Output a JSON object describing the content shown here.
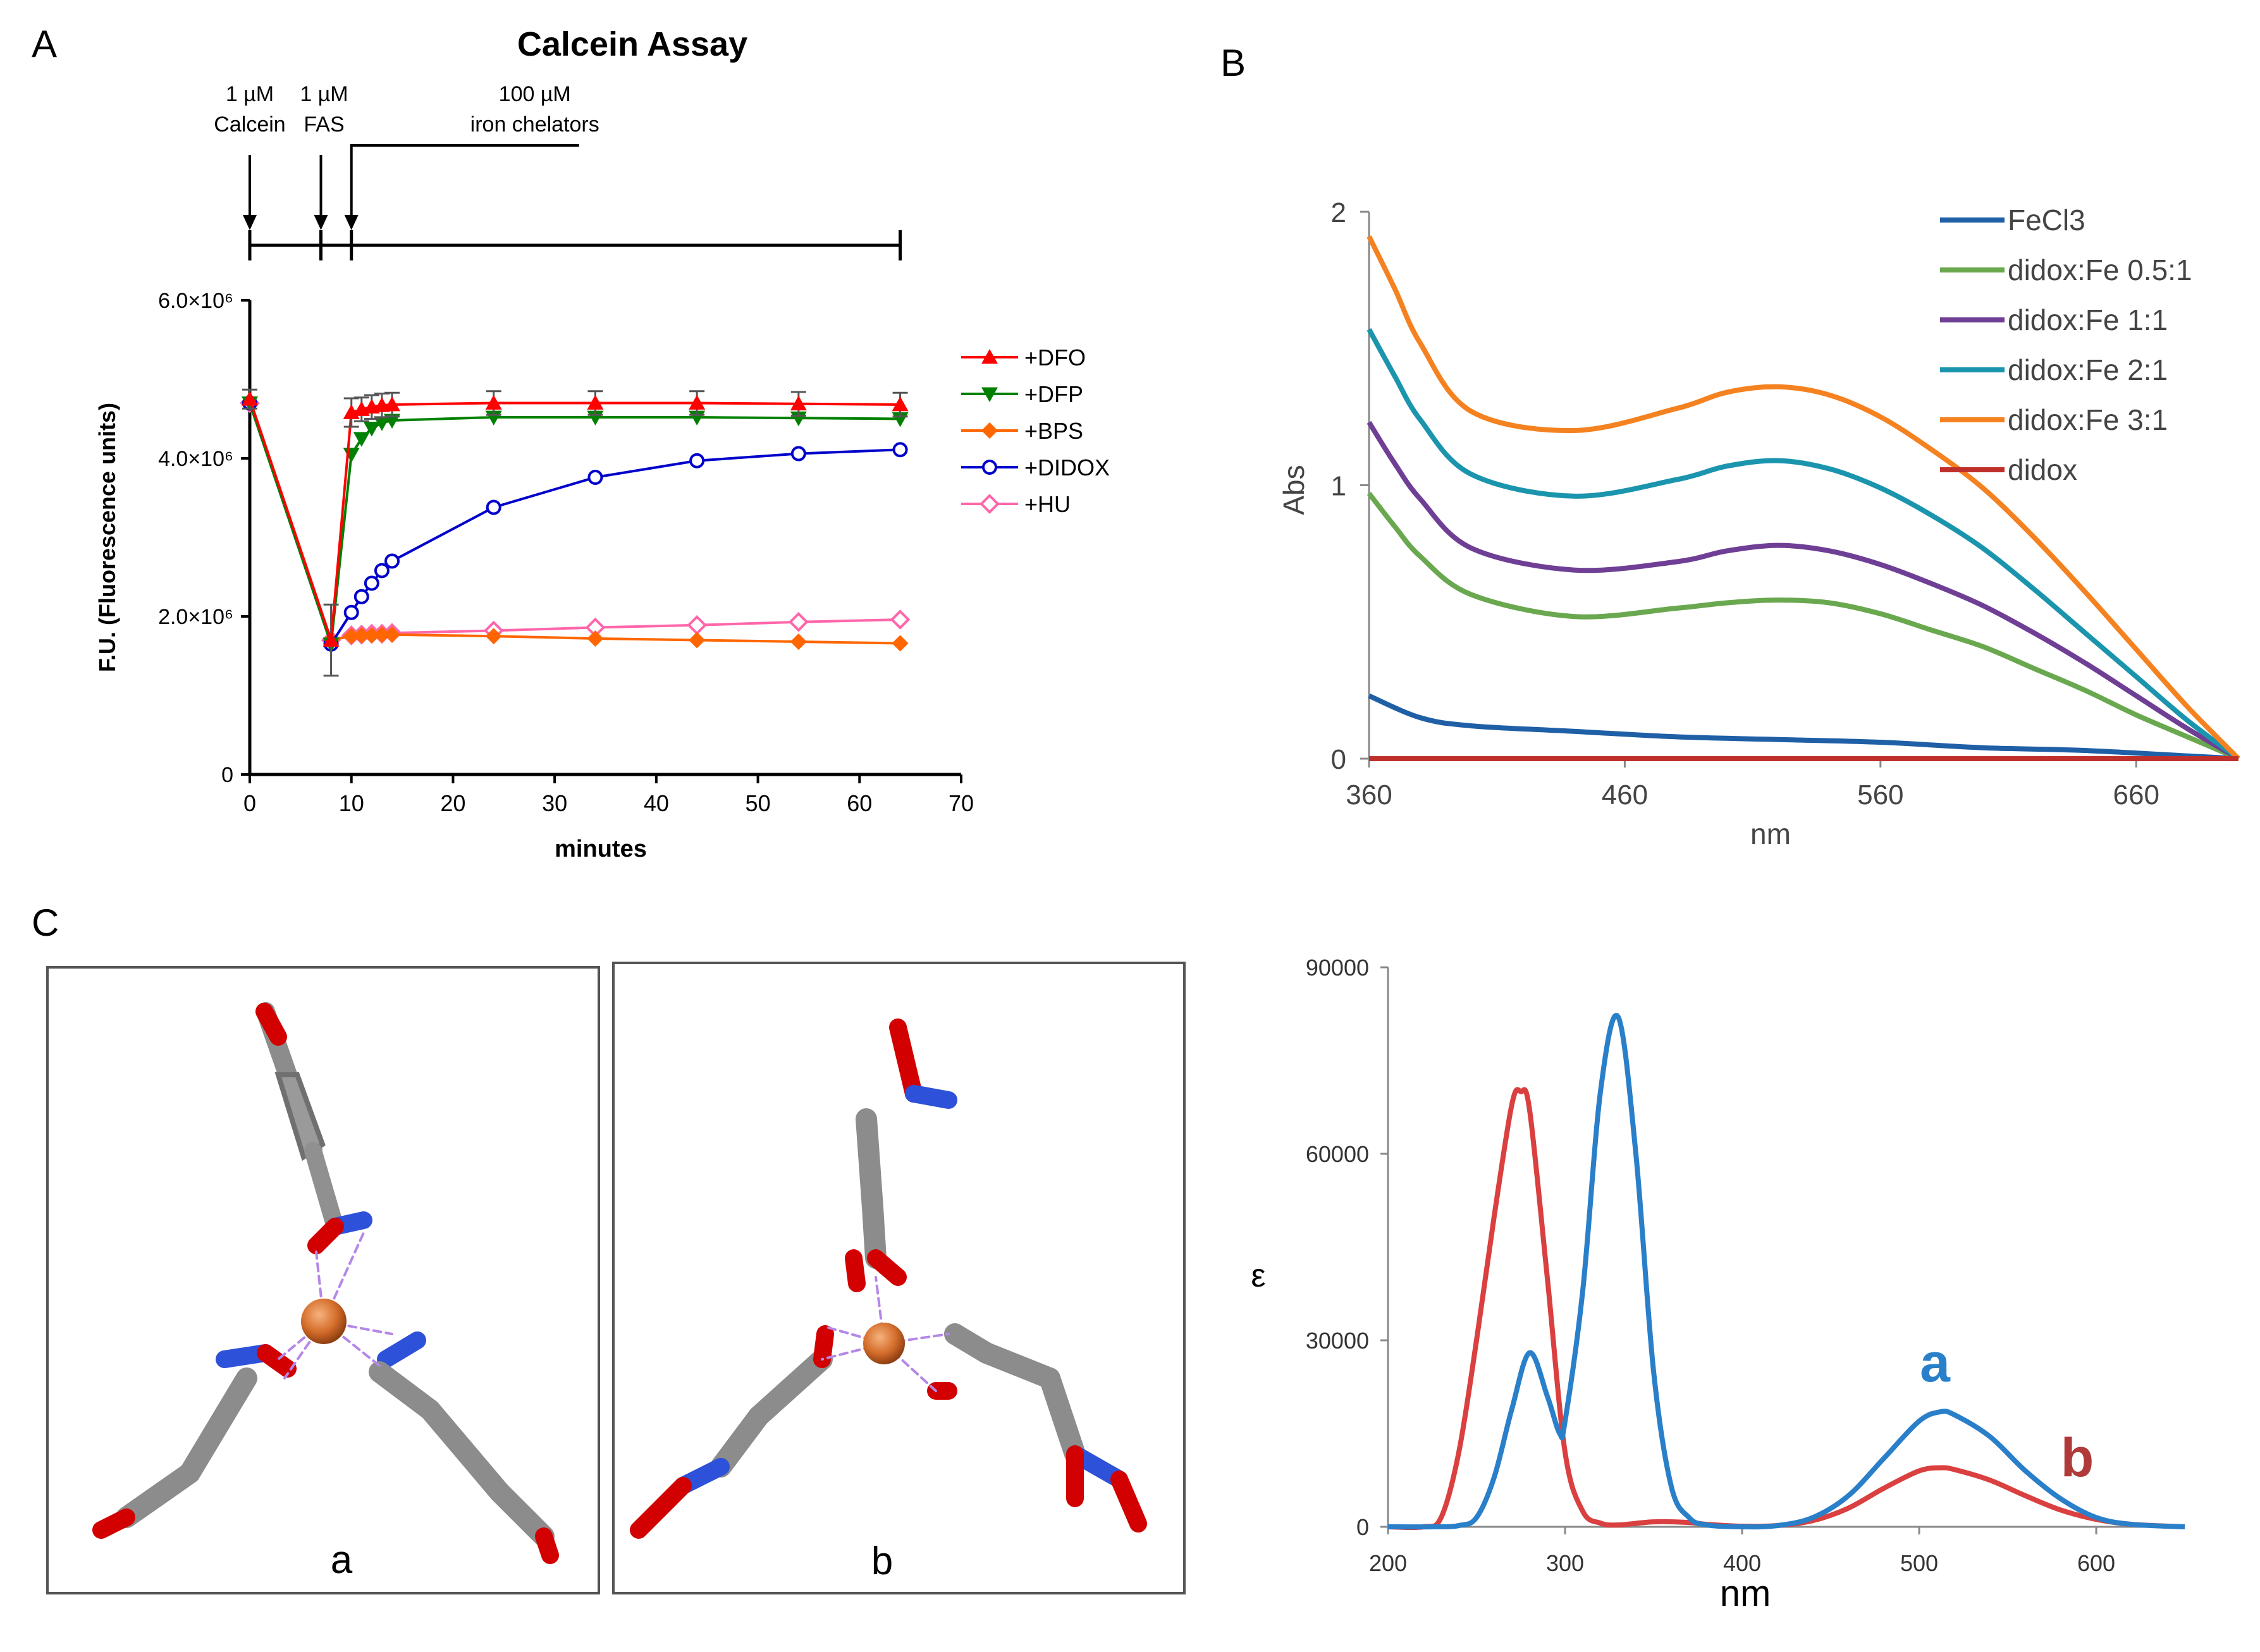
{
  "panel_labels": {
    "a": "A",
    "b": "B",
    "c": "C"
  },
  "chart_data": [
    {
      "id": "calcein",
      "type": "line",
      "title": "Calcein Assay",
      "xlabel": "minutes",
      "ylabel": "F.U. (Fluorescence units)",
      "xlim": [
        0,
        70
      ],
      "ylim": [
        0,
        6000000
      ],
      "xticks": [
        0,
        10,
        20,
        30,
        40,
        50,
        60,
        70
      ],
      "ytick_labels": [
        {
          "value": 0,
          "label": "0"
        },
        {
          "value": 2000000,
          "label": "2.0×10⁶"
        },
        {
          "value": 4000000,
          "label": "4.0×10⁶"
        },
        {
          "value": 6000000,
          "label": "6.0×10⁶"
        }
      ],
      "timeline": {
        "events": [
          {
            "time": 0,
            "amount": "1 µM",
            "label": "Calcein"
          },
          {
            "time": 7,
            "amount": "1 µM",
            "label": "FAS"
          },
          {
            "time": 10,
            "amount": "100 µM",
            "label": "iron chelators"
          }
        ],
        "end": 64
      },
      "series": [
        {
          "name": "+DFO",
          "color": "#ff0000",
          "marker": "triangle-up",
          "x": [
            0,
            8,
            10,
            11,
            12,
            13,
            14,
            24,
            34,
            44,
            54,
            64
          ],
          "y": [
            4750000,
            1700000,
            4580000,
            4620000,
            4650000,
            4670000,
            4680000,
            4700000,
            4700000,
            4700000,
            4690000,
            4680000
          ],
          "err": [
            120000,
            450000,
            180000,
            150000,
            150000,
            150000,
            150000,
            150000,
            150000,
            150000,
            150000,
            150000
          ]
        },
        {
          "name": "+DFP",
          "color": "#008000",
          "marker": "triangle-down",
          "x": [
            0,
            8,
            10,
            11,
            12,
            13,
            14,
            24,
            34,
            44,
            54,
            64
          ],
          "y": [
            4700000,
            1650000,
            4050000,
            4250000,
            4380000,
            4450000,
            4480000,
            4520000,
            4520000,
            4520000,
            4510000,
            4500000
          ],
          "err": [
            0,
            0,
            0,
            0,
            0,
            0,
            0,
            0,
            0,
            0,
            0,
            0
          ]
        },
        {
          "name": "+BPS",
          "color": "#ff6600",
          "marker": "diamond",
          "x": [
            0,
            8,
            10,
            11,
            12,
            13,
            14,
            24,
            34,
            44,
            54,
            64
          ],
          "y": [
            4700000,
            1700000,
            1750000,
            1760000,
            1760000,
            1770000,
            1770000,
            1750000,
            1720000,
            1700000,
            1680000,
            1660000
          ],
          "err": [
            0,
            0,
            0,
            0,
            0,
            0,
            0,
            0,
            0,
            0,
            0,
            0
          ]
        },
        {
          "name": "+DIDOX",
          "color": "#0000cc",
          "marker": "circle",
          "x": [
            0,
            8,
            10,
            11,
            12,
            13,
            14,
            24,
            34,
            44,
            54,
            64
          ],
          "y": [
            4700000,
            1650000,
            2050000,
            2250000,
            2420000,
            2580000,
            2700000,
            3380000,
            3760000,
            3970000,
            4060000,
            4110000
          ],
          "err": [
            0,
            0,
            0,
            0,
            0,
            0,
            0,
            0,
            0,
            0,
            0,
            0
          ]
        },
        {
          "name": "+HU",
          "color": "#ff66aa",
          "marker": "diamond-open",
          "x": [
            0,
            8,
            10,
            11,
            12,
            13,
            14,
            24,
            34,
            44,
            54,
            64
          ],
          "y": [
            4700000,
            1700000,
            1760000,
            1770000,
            1780000,
            1780000,
            1790000,
            1820000,
            1860000,
            1890000,
            1930000,
            1960000
          ],
          "err": [
            0,
            0,
            0,
            0,
            0,
            0,
            0,
            0,
            0,
            0,
            0,
            0
          ]
        }
      ]
    },
    {
      "id": "abs-spectra",
      "type": "line",
      "title": "",
      "xlabel": "nm",
      "ylabel": "Abs",
      "xlim": [
        360,
        700
      ],
      "ylim": [
        0,
        2
      ],
      "xticks": [
        360,
        460,
        560,
        660
      ],
      "yticks": [
        0,
        1,
        2
      ],
      "series": [
        {
          "name": "FeCl3",
          "color": "#1f5fa6",
          "x": [
            360,
            380,
            400,
            440,
            480,
            520,
            560,
            600,
            640,
            680,
            700
          ],
          "y": [
            0.23,
            0.15,
            0.12,
            0.1,
            0.08,
            0.07,
            0.06,
            0.04,
            0.03,
            0.01,
            0.0
          ]
        },
        {
          "name": "didox:Fe 0.5:1",
          "color": "#6aa84f",
          "x": [
            360,
            370,
            380,
            400,
            440,
            480,
            500,
            520,
            540,
            560,
            580,
            600,
            620,
            640,
            660,
            680,
            700
          ],
          "y": [
            0.97,
            0.85,
            0.74,
            0.6,
            0.52,
            0.55,
            0.57,
            0.58,
            0.57,
            0.53,
            0.47,
            0.41,
            0.33,
            0.25,
            0.16,
            0.08,
            0.0
          ]
        },
        {
          "name": "didox:Fe 1:1",
          "color": "#6f3f95",
          "x": [
            360,
            370,
            380,
            400,
            440,
            480,
            500,
            520,
            540,
            560,
            580,
            600,
            620,
            640,
            660,
            680,
            700
          ],
          "y": [
            1.23,
            1.08,
            0.95,
            0.77,
            0.69,
            0.72,
            0.76,
            0.78,
            0.76,
            0.71,
            0.64,
            0.56,
            0.46,
            0.35,
            0.23,
            0.11,
            0.0
          ]
        },
        {
          "name": "didox:Fe 2:1",
          "color": "#1b95ad",
          "x": [
            360,
            370,
            380,
            400,
            440,
            480,
            500,
            520,
            540,
            560,
            580,
            600,
            620,
            640,
            660,
            680,
            700
          ],
          "y": [
            1.57,
            1.4,
            1.24,
            1.04,
            0.96,
            1.02,
            1.07,
            1.09,
            1.06,
            0.99,
            0.89,
            0.77,
            0.62,
            0.46,
            0.3,
            0.14,
            0.0
          ]
        },
        {
          "name": "didox:Fe 3:1",
          "color": "#f58220",
          "x": [
            360,
            370,
            380,
            400,
            440,
            480,
            500,
            520,
            540,
            560,
            580,
            600,
            620,
            640,
            660,
            680,
            700
          ],
          "y": [
            1.91,
            1.72,
            1.52,
            1.27,
            1.2,
            1.28,
            1.34,
            1.36,
            1.33,
            1.25,
            1.13,
            0.99,
            0.81,
            0.61,
            0.4,
            0.19,
            0.0
          ]
        },
        {
          "name": "didox",
          "color": "#c0302b",
          "x": [
            360,
            700
          ],
          "y": [
            0.0,
            0.0
          ]
        }
      ]
    },
    {
      "id": "epsilon-spectra",
      "type": "line",
      "title": "",
      "xlabel": "nm",
      "ylabel": "ε",
      "xlim": [
        200,
        650
      ],
      "ylim": [
        0,
        90000
      ],
      "xticks": [
        200,
        300,
        400,
        500,
        600
      ],
      "yticks": [
        0,
        30000,
        60000,
        90000
      ],
      "series": [
        {
          "name": "a",
          "color": "#2a7fc9",
          "x": [
            200,
            225,
            240,
            250,
            260,
            270,
            280,
            290,
            297,
            300,
            310,
            320,
            330,
            340,
            350,
            360,
            370,
            380,
            400,
            420,
            440,
            460,
            480,
            500,
            512,
            520,
            540,
            560,
            580,
            600,
            620,
            650
          ],
          "y": [
            0,
            0,
            200,
            1500,
            8000,
            19000,
            28000,
            21000,
            15000,
            17000,
            38000,
            70000,
            82000,
            60000,
            25000,
            6500,
            1500,
            300,
            0,
            200,
            1500,
            5000,
            11000,
            17000,
            18500,
            18000,
            14500,
            9000,
            4500,
            1500,
            400,
            0
          ]
        },
        {
          "name": "b",
          "color": "#d9403f",
          "x": [
            200,
            220,
            230,
            240,
            250,
            260,
            270,
            275,
            280,
            290,
            300,
            310,
            320,
            330,
            350,
            370,
            380,
            400,
            420,
            440,
            460,
            480,
            500,
            512,
            520,
            540,
            560,
            580,
            600,
            620,
            650
          ],
          "y": [
            0,
            0,
            1500,
            12000,
            30000,
            50000,
            68000,
            70000,
            67000,
            40000,
            12000,
            2500,
            600,
            300,
            800,
            700,
            400,
            100,
            200,
            1000,
            3000,
            6200,
            9000,
            9500,
            9200,
            7500,
            5000,
            2700,
            1200,
            400,
            0
          ]
        }
      ]
    }
  ],
  "structure_labels": {
    "a": "a",
    "b": "b"
  },
  "spectrum_peak_labels": {
    "a": "a",
    "b": "b"
  }
}
